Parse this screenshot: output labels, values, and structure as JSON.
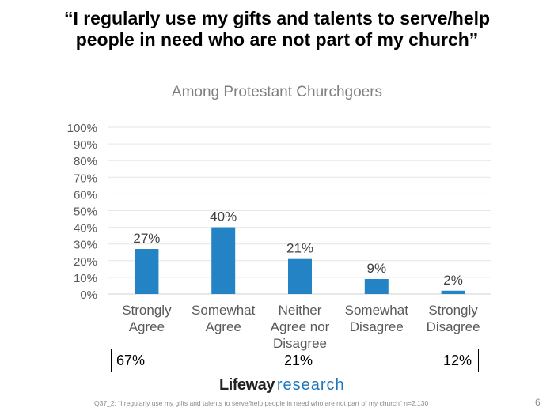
{
  "title_line1": "“I regularly use my gifts and talents to serve/help",
  "title_line2": "people in need who are not part of my church”",
  "chart_data": {
    "type": "bar",
    "title": "Among Protestant Churchgoers",
    "categories": [
      [
        "Strongly",
        "Agree"
      ],
      [
        "Somewhat",
        "Agree"
      ],
      [
        "Neither",
        "Agree nor",
        "Disagree"
      ],
      [
        "Somewhat",
        "Disagree"
      ],
      [
        "Strongly",
        "Disagree"
      ]
    ],
    "values": [
      27,
      40,
      21,
      9,
      2
    ],
    "data_labels": [
      "27%",
      "40%",
      "21%",
      "9%",
      "2%"
    ],
    "yticks": [
      "0%",
      "10%",
      "20%",
      "30%",
      "40%",
      "50%",
      "60%",
      "70%",
      "80%",
      "90%",
      "100%"
    ],
    "ylim": [
      0,
      100
    ],
    "grid": true,
    "color": "#2383c4"
  },
  "summary": {
    "agree": "67%",
    "neither": "21%",
    "disagree": "12%"
  },
  "logo": {
    "part1": "Lifeway",
    "part2": "research"
  },
  "footnote": "Q37_2: “I regularly use my gifts and talents to serve/help people in need who are not part of my church”  n=2,130",
  "page_number": "6"
}
